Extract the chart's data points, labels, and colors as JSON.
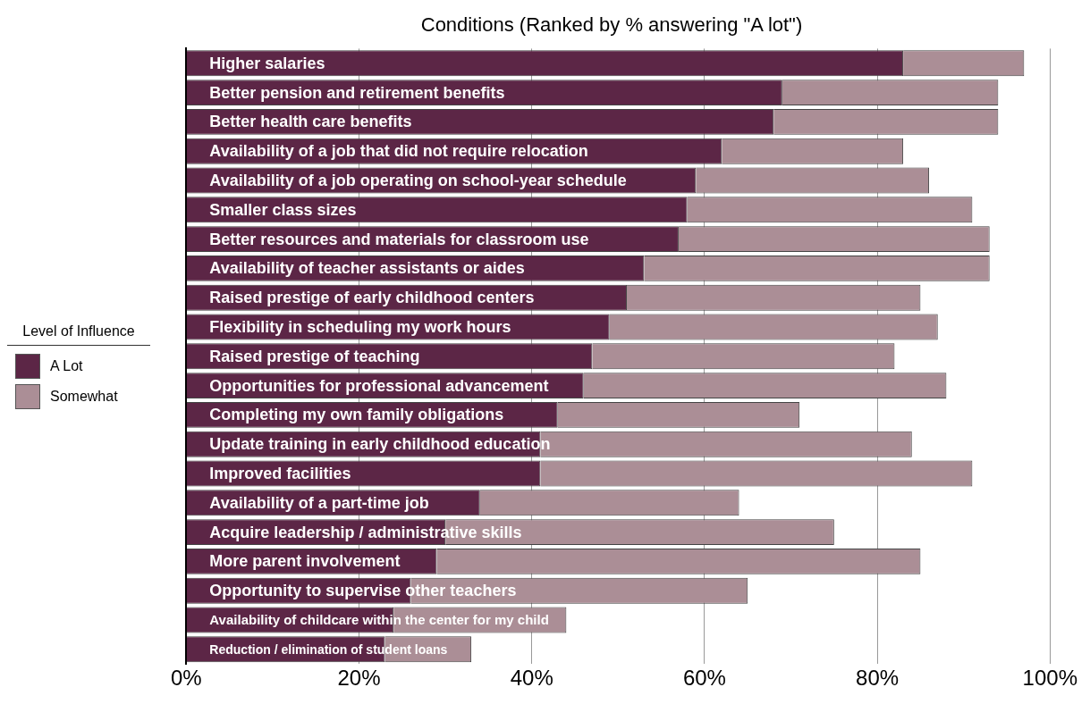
{
  "chart_data": {
    "type": "bar",
    "orientation": "horizontal",
    "stacked": true,
    "title": "Conditions (Ranked by % answering \"A lot\")",
    "categories": [
      "Higher salaries",
      "Better pension and retirement benefits",
      "Better health care benefits",
      "Availability of a job that did not require relocation",
      "Availability of a job operating on school-year schedule",
      "Smaller class sizes",
      "Better resources and materials for classroom use",
      "Availability of teacher assistants or aides",
      "Raised prestige of early childhood centers",
      "Flexibility in scheduling my work hours",
      "Raised prestige of teaching",
      "Opportunities for professional advancement",
      "Completing my own family obligations",
      "Update training in early childhood education",
      "Improved facilities",
      "Availability of a part-time job",
      "Acquire leadership / administrative skills",
      "More parent involvement",
      "Opportunity to supervise other teachers",
      "Availability of childcare within the center for my child",
      "Reduction / elimination of student loans"
    ],
    "series": [
      {
        "name": "A Lot",
        "color": "#5c2646",
        "values": [
          83,
          69,
          68,
          62,
          59,
          58,
          57,
          53,
          51,
          49,
          47,
          46,
          43,
          41,
          41,
          34,
          30,
          29,
          26,
          24,
          23
        ]
      },
      {
        "name": "Somewhat",
        "color": "#ab8e96",
        "values": [
          14,
          25,
          26,
          21,
          27,
          33,
          36,
          40,
          34,
          38,
          35,
          42,
          28,
          43,
          50,
          30,
          45,
          56,
          39,
          20,
          10
        ]
      }
    ],
    "xlim": [
      0,
      100
    ],
    "xticks": [
      {
        "value": 0,
        "label": "0%"
      },
      {
        "value": 20,
        "label": "20%"
      },
      {
        "value": 40,
        "label": "40%"
      },
      {
        "value": 60,
        "label": "60%"
      },
      {
        "value": 80,
        "label": "80%"
      },
      {
        "value": 100,
        "label": "100%"
      }
    ],
    "grid": "x",
    "legend": "left",
    "legend_title": "Level of Influence"
  }
}
